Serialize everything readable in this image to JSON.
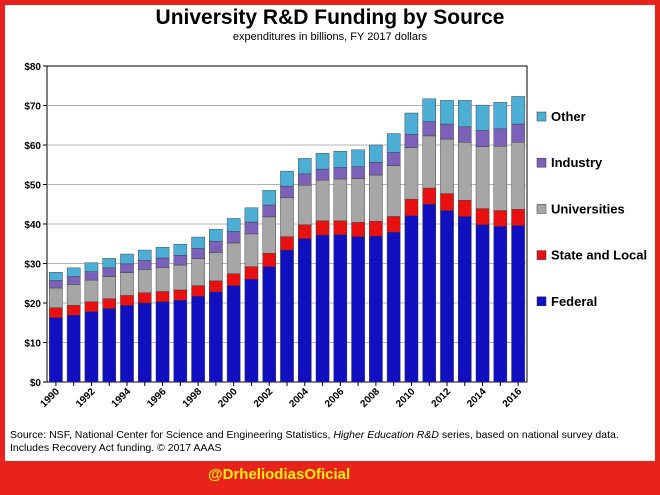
{
  "chart_data": {
    "type": "bar",
    "stacked": true,
    "title": "University R&D Funding by Source",
    "subtitle": "expenditures in billions, FY 2017 dollars",
    "y_ticks": [
      "$0",
      "$10",
      "$20",
      "$30",
      "$40",
      "$50",
      "$60",
      "$70",
      "$80"
    ],
    "ylim": [
      0,
      80
    ],
    "grid": true,
    "legend_position": "right",
    "categories": [
      1990,
      1991,
      1992,
      1993,
      1994,
      1995,
      1996,
      1997,
      1998,
      1999,
      2000,
      2001,
      2002,
      2003,
      2004,
      2005,
      2006,
      2007,
      2008,
      2009,
      2010,
      2011,
      2012,
      2013,
      2014,
      2015,
      2016
    ],
    "x_tick_labels": [
      "1990",
      "1992",
      "1994",
      "1996",
      "1998",
      "2000",
      "2002",
      "2004",
      "2006",
      "2008",
      "2010",
      "2012",
      "2014",
      "2016"
    ],
    "series": [
      {
        "name": "Federal",
        "color": "#1010c0",
        "values": [
          16.3,
          16.9,
          17.8,
          18.6,
          19.4,
          20.0,
          20.3,
          20.7,
          21.7,
          22.8,
          24.4,
          26.0,
          29.2,
          33.4,
          36.3,
          37.2,
          37.3,
          36.8,
          36.9,
          37.9,
          42.1,
          45.0,
          43.4,
          41.9,
          39.8,
          39.4,
          39.6
        ]
      },
      {
        "name": "State and Local",
        "color": "#e81010",
        "values": [
          2.5,
          2.5,
          2.5,
          2.5,
          2.5,
          2.6,
          2.6,
          2.6,
          2.7,
          2.8,
          3.0,
          3.2,
          3.4,
          3.4,
          3.5,
          3.6,
          3.5,
          3.6,
          3.8,
          4.0,
          4.2,
          4.1,
          4.3,
          4.1,
          4.1,
          4.0,
          4.1
        ]
      },
      {
        "name": "Universities",
        "color": "#a6a6a6",
        "values": [
          5.0,
          5.3,
          5.5,
          5.6,
          5.8,
          5.9,
          6.1,
          6.3,
          6.8,
          7.2,
          7.8,
          8.3,
          9.2,
          9.9,
          10.0,
          10.3,
          10.6,
          11.1,
          11.7,
          12.9,
          13.0,
          13.2,
          13.8,
          14.7,
          15.7,
          16.3,
          17.0
        ]
      },
      {
        "name": "Industry",
        "color": "#7b62b8",
        "values": [
          1.9,
          2.0,
          2.1,
          2.2,
          2.2,
          2.3,
          2.4,
          2.5,
          2.6,
          2.8,
          2.9,
          3.0,
          3.0,
          2.9,
          2.9,
          2.8,
          2.9,
          3.0,
          3.2,
          3.3,
          3.4,
          3.6,
          3.8,
          3.9,
          4.1,
          4.4,
          4.6
        ]
      },
      {
        "name": "Other",
        "color": "#4cadd5",
        "values": [
          2.1,
          2.2,
          2.3,
          2.4,
          2.5,
          2.6,
          2.7,
          2.8,
          2.9,
          3.1,
          3.3,
          3.6,
          3.7,
          3.8,
          3.9,
          4.0,
          4.1,
          4.3,
          4.4,
          4.8,
          5.4,
          5.8,
          6.0,
          6.7,
          6.4,
          6.7,
          7.0
        ]
      }
    ],
    "source_label": "Source: NSF, National Center for Science and Engineering Statistics, ",
    "source_italic": "Higher Education R&D",
    "source_rest": " series, based on national survey data.",
    "source_line2": "Includes Recovery  Act funding. © 2017 AAAS"
  },
  "footer": {
    "handle": "@DrheliodiasOficial"
  }
}
